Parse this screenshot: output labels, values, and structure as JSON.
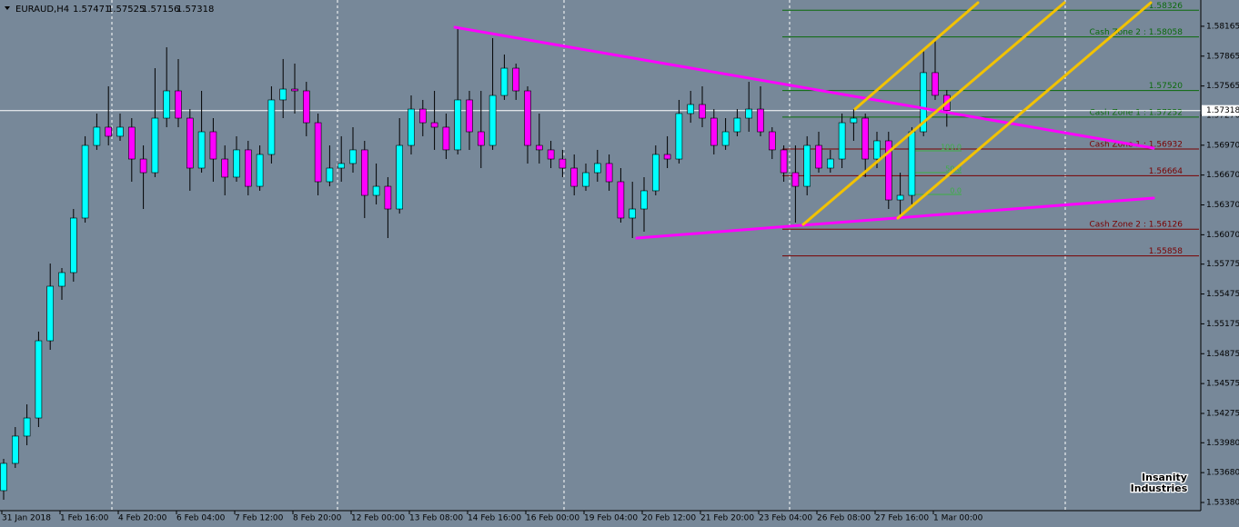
{
  "chart_data": {
    "type": "candlestick",
    "symbol": "EURAUD,H4",
    "up_color": "#00ffff",
    "down_color": "#ff00ff",
    "ylim": [
      1.53298,
      1.58429
    ],
    "yticks": [
      1.58165,
      1.57865,
      1.57565,
      {
        "value": 1.5727,
        "label": "1.57270"
      },
      {
        "value": 1.5697,
        "label": "1.56970"
      },
      {
        "value": 1.5667,
        "label": "1.56670"
      },
      {
        "value": 1.5637,
        "label": "1.56370"
      },
      {
        "value": 1.5607,
        "label": "1.56070"
      },
      1.55775,
      1.55475,
      1.55175,
      1.54875,
      1.54575,
      1.54275,
      {
        "value": 1.5398,
        "label": "1.53980"
      },
      {
        "value": 1.5368,
        "label": "1.53680"
      },
      {
        "value": 1.5338,
        "label": "1.53380"
      }
    ],
    "categories": [
      "31 Jan 2018",
      null,
      null,
      null,
      null,
      "1 Feb 16:00",
      null,
      null,
      null,
      null,
      "4 Feb 20:00",
      null,
      null,
      null,
      null,
      "6 Feb 04:00",
      null,
      null,
      null,
      null,
      "7 Feb 12:00",
      null,
      null,
      null,
      null,
      "8 Feb 20:00",
      null,
      null,
      null,
      null,
      "12 Feb 00:00",
      null,
      null,
      null,
      null,
      "13 Feb 08:00",
      null,
      null,
      null,
      null,
      "14 Feb 16:00",
      null,
      null,
      null,
      null,
      "16 Feb 00:00",
      null,
      null,
      null,
      null,
      "19 Feb 04:00",
      null,
      null,
      null,
      null,
      "20 Feb 12:00",
      null,
      null,
      null,
      null,
      "21 Feb 20:00",
      null,
      null,
      null,
      null,
      "23 Feb 04:00",
      null,
      null,
      null,
      null,
      "26 Feb 08:00",
      null,
      null,
      null,
      null,
      "27 Feb 16:00",
      null,
      null,
      null,
      null,
      "1 Mar 00:00",
      null
    ],
    "candles": [
      [
        1.53499,
        1.53818,
        1.53407,
        1.53773
      ],
      [
        1.53773,
        1.54138,
        1.53727,
        1.54047
      ],
      [
        1.54047,
        1.54366,
        1.53955,
        1.54229
      ],
      [
        1.54229,
        1.55097,
        1.54138,
        1.55005
      ],
      [
        1.55005,
        1.55781,
        1.54914,
        1.55553
      ],
      [
        1.55553,
        1.55736,
        1.55416,
        1.5569
      ],
      [
        1.5569,
        1.56329,
        1.55599,
        1.56238
      ],
      [
        1.56238,
        1.5706,
        1.56192,
        1.56968
      ],
      [
        1.56968,
        1.57288,
        1.56923,
        1.57151
      ],
      [
        1.57151,
        1.57562,
        1.56968,
        1.5706
      ],
      [
        1.5706,
        1.57288,
        1.57014,
        1.57151
      ],
      [
        1.57151,
        1.57242,
        1.56603,
        1.56831
      ],
      [
        1.56831,
        1.56968,
        1.56329,
        1.56694
      ],
      [
        1.56694,
        1.57744,
        1.56649,
        1.57242
      ],
      [
        1.57242,
        1.57954,
        1.57151,
        1.57516
      ],
      [
        1.57516,
        1.57836,
        1.57151,
        1.57242
      ],
      [
        1.57242,
        1.57333,
        1.56512,
        1.5674
      ],
      [
        1.5674,
        1.57516,
        1.56694,
        1.57105
      ],
      [
        1.57105,
        1.57242,
        1.56603,
        1.56831
      ],
      [
        1.56831,
        1.56968,
        1.56466,
        1.56649
      ],
      [
        1.56649,
        1.5706,
        1.56603,
        1.56923
      ],
      [
        1.56923,
        1.57014,
        1.56466,
        1.56557
      ],
      [
        1.56557,
        1.56968,
        1.56512,
        1.56877
      ],
      [
        1.56877,
        1.57562,
        1.56786,
        1.57425
      ],
      [
        1.57425,
        1.57836,
        1.57242,
        1.57534
      ],
      [
        1.57534,
        1.5779,
        1.57288,
        1.57516
      ],
      [
        1.57516,
        1.57607,
        1.5706,
        1.57196
      ],
      [
        1.57196,
        1.57288,
        1.56466,
        1.56603
      ],
      [
        1.56603,
        1.56968,
        1.56557,
        1.5674
      ],
      [
        1.5674,
        1.5706,
        1.56603,
        1.56786
      ],
      [
        1.56786,
        1.57151,
        1.56694,
        1.56923
      ],
      [
        1.56923,
        1.57014,
        1.56238,
        1.56466
      ],
      [
        1.56466,
        1.56786,
        1.56375,
        1.56557
      ],
      [
        1.56557,
        1.56649,
        1.56037,
        1.56329
      ],
      [
        1.56329,
        1.57242,
        1.56283,
        1.56968
      ],
      [
        1.56968,
        1.5747,
        1.56877,
        1.57333
      ],
      [
        1.57333,
        1.57425,
        1.5706,
        1.57196
      ],
      [
        1.57196,
        1.57516,
        1.56923,
        1.57151
      ],
      [
        1.57151,
        1.57288,
        1.56831,
        1.56923
      ],
      [
        1.56923,
        1.58155,
        1.56877,
        1.57425
      ],
      [
        1.57425,
        1.57516,
        1.56923,
        1.57105
      ],
      [
        1.57105,
        1.57516,
        1.5674,
        1.56968
      ],
      [
        1.56968,
        1.58046,
        1.56923,
        1.5747
      ],
      [
        1.5747,
        1.57881,
        1.57425,
        1.57744
      ],
      [
        1.57744,
        1.5779,
        1.57425,
        1.57516
      ],
      [
        1.57516,
        1.57562,
        1.56786,
        1.56968
      ],
      [
        1.56968,
        1.57288,
        1.56786,
        1.56923
      ],
      [
        1.56923,
        1.57014,
        1.5674,
        1.56831
      ],
      [
        1.56831,
        1.56923,
        1.56649,
        1.5674
      ],
      [
        1.5674,
        1.56877,
        1.56466,
        1.56557
      ],
      [
        1.56557,
        1.56786,
        1.56512,
        1.56694
      ],
      [
        1.56694,
        1.56923,
        1.56603,
        1.56786
      ],
      [
        1.56786,
        1.56877,
        1.56512,
        1.56603
      ],
      [
        1.56603,
        1.5674,
        1.56192,
        1.56238
      ],
      [
        1.56238,
        1.56603,
        1.56037,
        1.56329
      ],
      [
        1.56329,
        1.56649,
        1.56101,
        1.56512
      ],
      [
        1.56512,
        1.56968,
        1.56466,
        1.56877
      ],
      [
        1.56877,
        1.5706,
        1.5674,
        1.56831
      ],
      [
        1.56831,
        1.57425,
        1.56786,
        1.57288
      ],
      [
        1.57288,
        1.57516,
        1.57196,
        1.57379
      ],
      [
        1.57379,
        1.57562,
        1.57151,
        1.57242
      ],
      [
        1.57242,
        1.57333,
        1.56877,
        1.56968
      ],
      [
        1.56968,
        1.57242,
        1.56923,
        1.57105
      ],
      [
        1.57105,
        1.57333,
        1.5706,
        1.57242
      ],
      [
        1.57242,
        1.57607,
        1.57105,
        1.57333
      ],
      [
        1.57333,
        1.57562,
        1.5706,
        1.57105
      ],
      [
        1.57105,
        1.57151,
        1.56831,
        1.56923
      ],
      [
        1.56923,
        1.56968,
        1.56603,
        1.56694
      ],
      [
        1.56694,
        1.56968,
        1.56192,
        1.56557
      ],
      [
        1.56557,
        1.5706,
        1.56466,
        1.56968
      ],
      [
        1.56968,
        1.57105,
        1.56694,
        1.5674
      ],
      [
        1.5674,
        1.56923,
        1.56694,
        1.56831
      ],
      [
        1.56831,
        1.57288,
        1.5674,
        1.57196
      ],
      [
        1.57196,
        1.57333,
        1.57014,
        1.57242
      ],
      [
        1.57242,
        1.57288,
        1.56649,
        1.56831
      ],
      [
        1.56831,
        1.57105,
        1.5674,
        1.57014
      ],
      [
        1.57014,
        1.57105,
        1.56329,
        1.5642
      ],
      [
        1.5642,
        1.56694,
        1.56238,
        1.56466
      ],
      [
        1.56466,
        1.57151,
        1.56375,
        1.57105
      ],
      [
        1.57105,
        1.57927,
        1.5706,
        1.57699
      ],
      [
        1.57699,
        1.58018,
        1.57425,
        1.57471
      ],
      [
        1.57471,
        1.57525,
        1.57156,
        1.57318
      ]
    ],
    "levels": [
      {
        "value": 1.58326,
        "label": "1.58326",
        "color": "#0b6b0b"
      },
      {
        "value": 1.58058,
        "label": "Cash Zone 2 : 1.58058",
        "color": "#0b6b0b"
      },
      {
        "value": 1.5752,
        "label": "1.57520",
        "color": "#0b6b0b"
      },
      {
        "value": 1.57252,
        "label": "Cash Zone 1 : 1.57252",
        "color": "#0b6b0b"
      },
      {
        "value": 1.56932,
        "label": "Cash Zone 1 : 1.56932",
        "color": "#7a0000"
      },
      {
        "value": 1.56664,
        "label": "1.56664",
        "color": "#7a0000"
      },
      {
        "value": 1.56126,
        "label": "Cash Zone 2 : 1.56126",
        "color": "#7a0000"
      },
      {
        "value": 1.55858,
        "label": "1.55858",
        "color": "#7a0000"
      }
    ],
    "fib_levels": [
      {
        "value": 100,
        "label": "100.0"
      },
      {
        "value": 50,
        "label": "50.0"
      },
      {
        "value": 0,
        "label": "0.0"
      }
    ],
    "fib_color": "#3cb043",
    "watermark": [
      "Insanity",
      "Industries"
    ]
  }
}
